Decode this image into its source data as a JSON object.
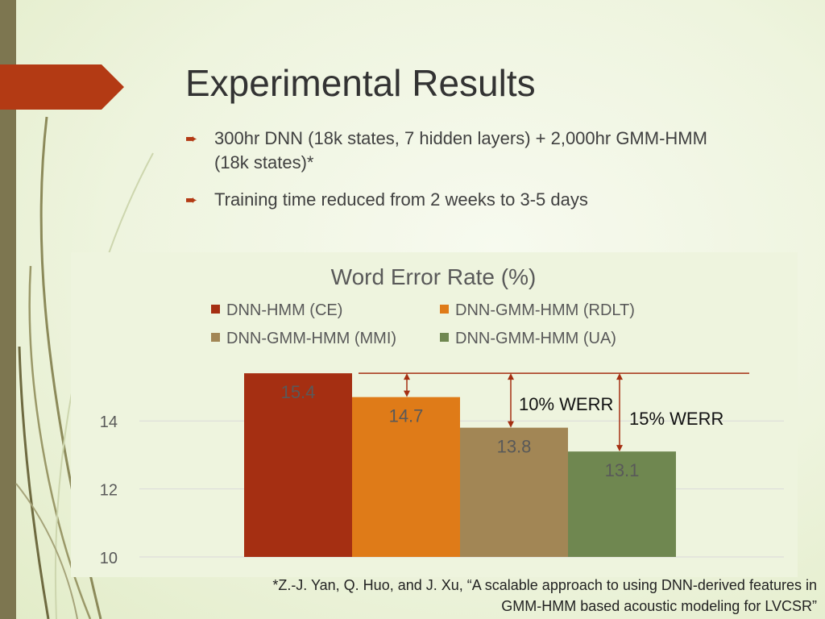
{
  "slide": {
    "title": "Experimental Results",
    "bullets": [
      "300hr DNN (18k states, 7 hidden layers) + 2,000hr GMM-HMM (18k states)*",
      "Training time reduced from 2 weeks to 3-5 days"
    ],
    "footnote": "*Z.-J. Yan, Q. Huo, and J. Xu, “A scalable approach to using DNN-derived features in GMM-HMM based acoustic modeling for LVCSR”",
    "accent_color": "#b33a14"
  },
  "chart_data": {
    "type": "bar",
    "title": "Word Error Rate (%)",
    "categories": [
      "DNN-HMM (CE)",
      "DNN-GMM-HMM (RDLT)",
      "DNN-GMM-HMM (MMI)",
      "DNN-GMM-HMM (UA)"
    ],
    "values": [
      15.4,
      14.7,
      13.8,
      13.1
    ],
    "colors": [
      "#a52f12",
      "#df7b18",
      "#a28655",
      "#6f8750"
    ],
    "ylim": [
      10,
      15.4
    ],
    "yticks": [
      10,
      12,
      14
    ],
    "grid": true,
    "legend_position": "top",
    "annotations": [
      {
        "text": "10% WERR",
        "from_value": 15.4,
        "to_value": 13.8
      },
      {
        "text": "15% WERR",
        "from_value": 15.4,
        "to_value": 13.1
      }
    ]
  }
}
